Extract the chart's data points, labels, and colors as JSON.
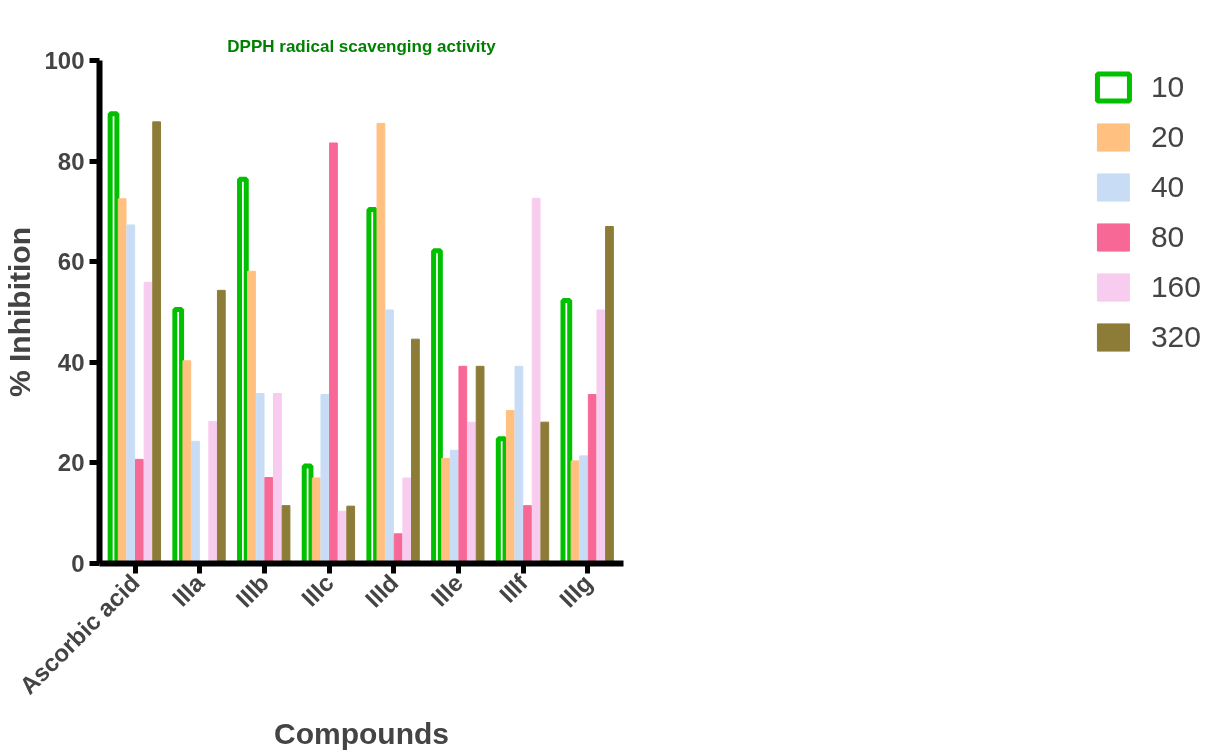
{
  "chart_data": {
    "type": "bar",
    "title": "DPPH radical scavenging activity",
    "xlabel": "Compounds",
    "ylabel": "% Inhibition",
    "categories": [
      "Ascorbic acid",
      "IIIa",
      "IIIb",
      "IIIc",
      "IIId",
      "IIIe",
      "IIIf",
      "IIIg"
    ],
    "series": [
      {
        "name": "10",
        "color": "#00c000",
        "values": [
          89.4,
          50.5,
          76.4,
          19.4,
          70.4,
          62.2,
          24.8,
          52.3
        ]
      },
      {
        "name": "20",
        "color": "#ffc080",
        "values": [
          72.5,
          40.3,
          58.1,
          17.0,
          87.5,
          20.9,
          30.4,
          20.4
        ]
      },
      {
        "name": "40",
        "color": "#c8ddf5",
        "values": [
          67.3,
          24.3,
          33.8,
          33.6,
          50.4,
          22.5,
          39.2,
          21.4
        ]
      },
      {
        "name": "80",
        "color": "#f86896",
        "values": [
          20.7,
          null,
          17.1,
          83.6,
          5.9,
          39.2,
          11.5,
          33.6
        ]
      },
      {
        "name": "160",
        "color": "#f8ccee",
        "values": [
          55.9,
          28.2,
          33.8,
          10.4,
          17.0,
          28.1,
          72.6,
          50.4
        ]
      },
      {
        "name": "320",
        "color": "#8c7c38",
        "values": [
          87.8,
          54.3,
          11.5,
          11.4,
          44.6,
          39.2,
          28.1,
          67.0
        ]
      }
    ],
    "ylim": [
      0,
      100
    ],
    "yticks": [
      0,
      20,
      40,
      60,
      80,
      100
    ],
    "grid": false,
    "legend": "right"
  }
}
